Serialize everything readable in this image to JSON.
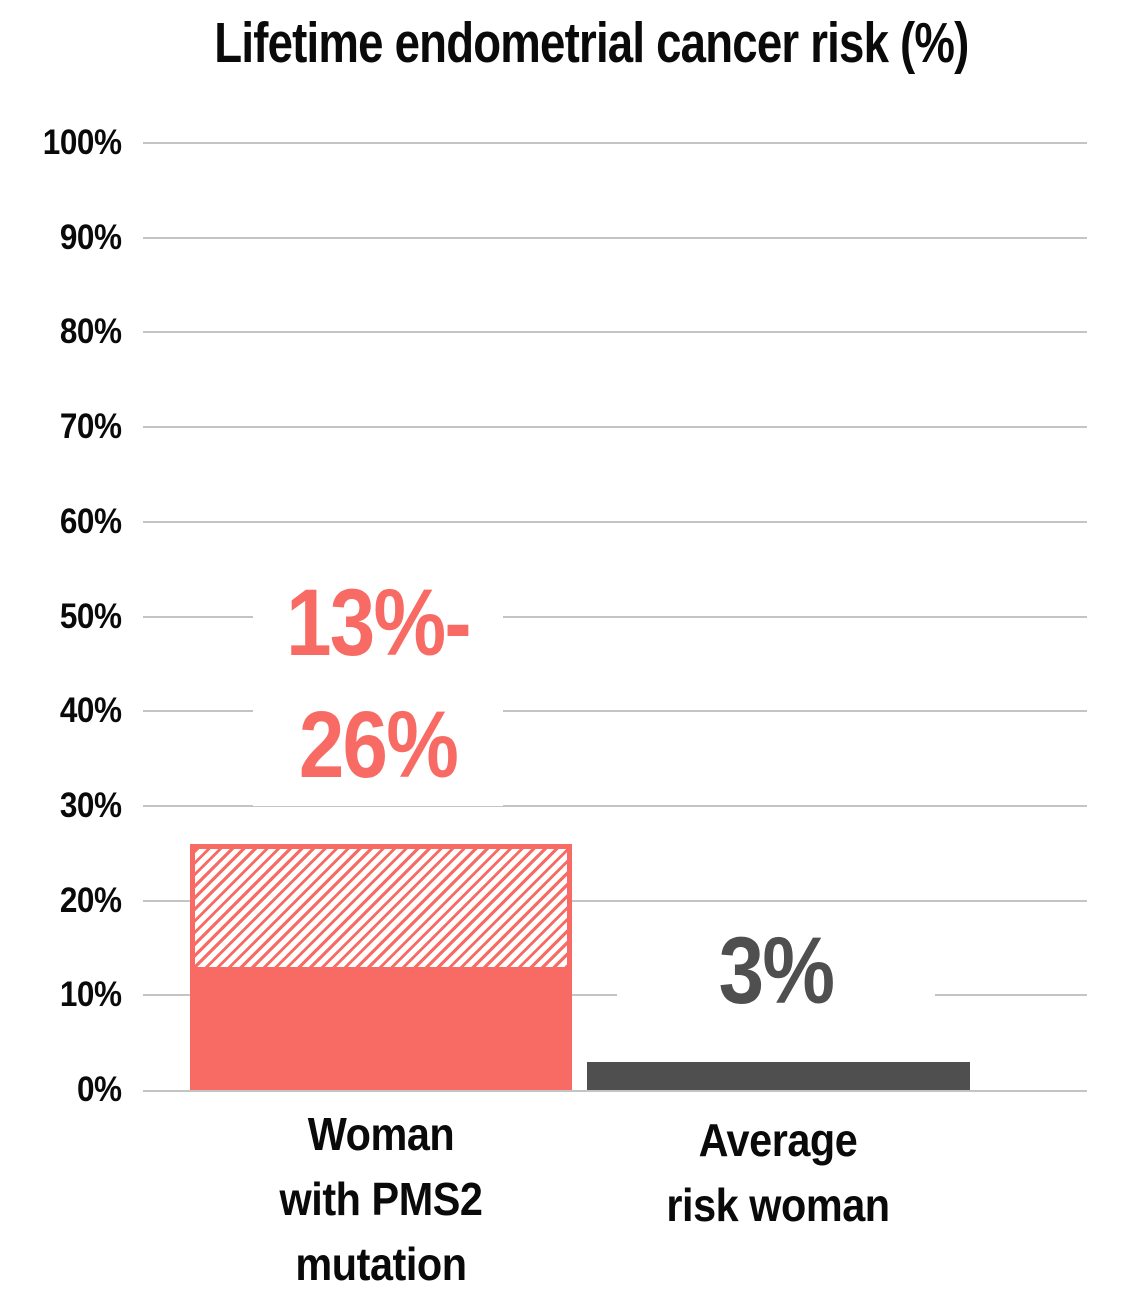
{
  "title": "Lifetime endometrial cancer risk (%)",
  "colors": {
    "salmon": "#f86b64",
    "dark_gray": "#4f4f4f",
    "gridline": "#c4c4c4",
    "text": "#0a0a0a",
    "background": "#ffffff"
  },
  "chart_data": {
    "type": "bar",
    "title": "Lifetime endometrial cancer risk (%)",
    "xlabel": "",
    "ylabel": "",
    "ylim": [
      0,
      100
    ],
    "yticks": [
      0,
      10,
      20,
      30,
      40,
      50,
      60,
      70,
      80,
      90,
      100
    ],
    "ytick_format": "{v}%",
    "grid": true,
    "legend": "none",
    "categories": [
      "Woman with PMS2 mutation",
      "Average risk woman"
    ],
    "bars": [
      {
        "category_lines": [
          "Woman",
          "with PMS2",
          "mutation"
        ],
        "value_label_lines": [
          "13%-",
          "26%"
        ],
        "value_low": 13,
        "value_high": 26,
        "pattern": "solid 0-13%, white diagonal-stripe hatch 13-26%",
        "color": "#f86b64"
      },
      {
        "category_lines": [
          "Average",
          "risk woman"
        ],
        "value_label_lines": [
          "3%"
        ],
        "value": 3,
        "pattern": "solid",
        "color": "#4f4f4f"
      }
    ]
  }
}
